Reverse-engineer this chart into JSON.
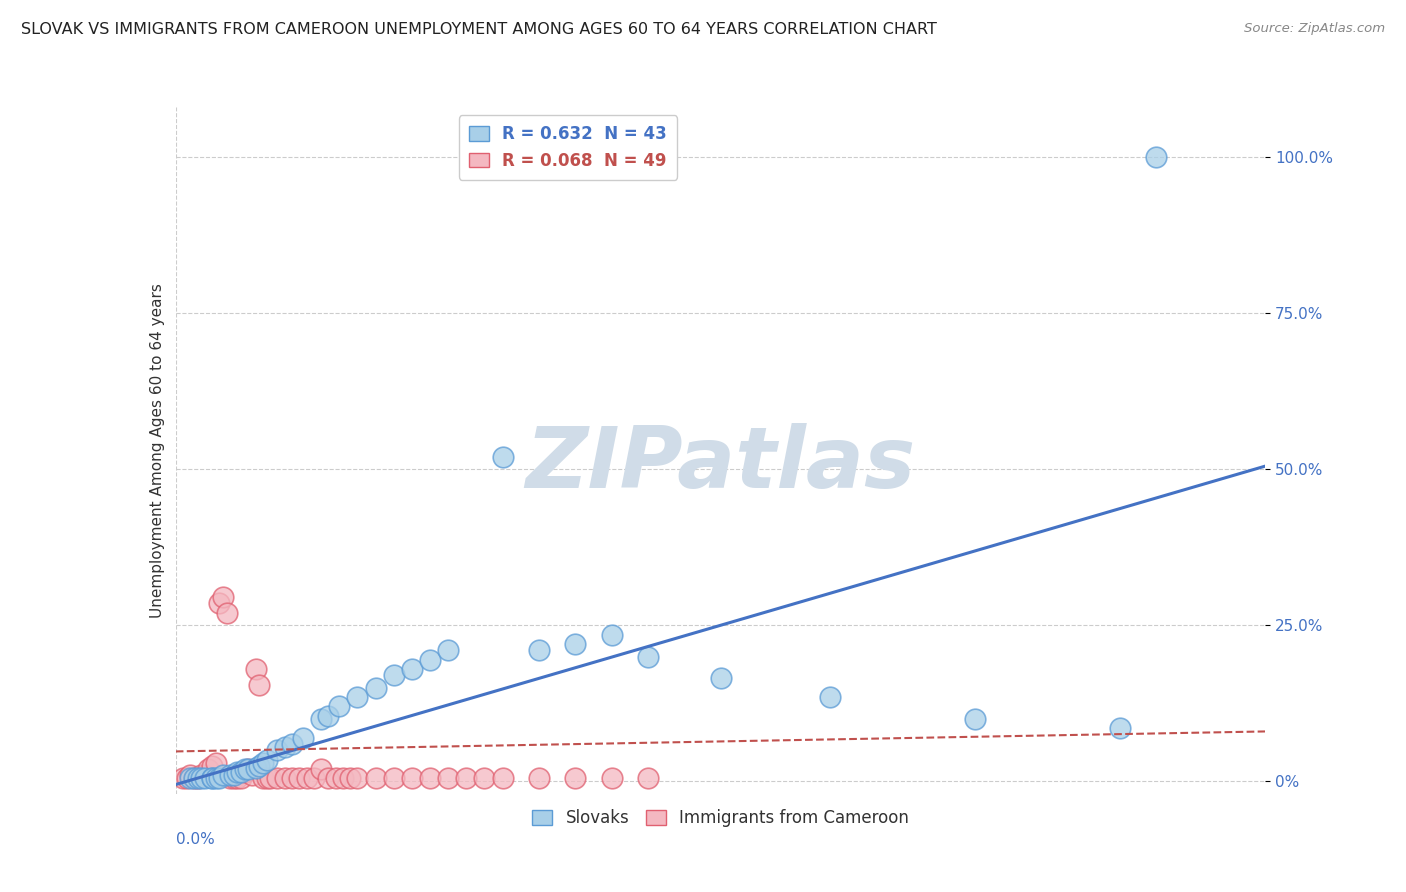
{
  "title": "SLOVAK VS IMMIGRANTS FROM CAMEROON UNEMPLOYMENT AMONG AGES 60 TO 64 YEARS CORRELATION CHART",
  "source": "Source: ZipAtlas.com",
  "xlabel_bottom_left": "0.0%",
  "ylabel": "Unemployment Among Ages 60 to 64 years",
  "yticks_labels": [
    "0%",
    "25.0%",
    "50.0%",
    "75.0%",
    "100.0%"
  ],
  "ytick_vals": [
    0,
    0.25,
    0.5,
    0.75,
    1.0
  ],
  "xlim": [
    0.0,
    0.3
  ],
  "ylim": [
    -0.02,
    1.08
  ],
  "legend_r1": "R = 0.632  N = 43",
  "legend_r2": "R = 0.068  N = 49",
  "legend_label1": "Slovaks",
  "legend_label2": "Immigrants from Cameroon",
  "blue_color": "#a8cfe8",
  "pink_color": "#f4b8c1",
  "blue_edge_color": "#5b9bd5",
  "pink_edge_color": "#e06070",
  "blue_line_color": "#4472c4",
  "pink_line_color": "#c0504d",
  "watermark_color": "#d0dce8",
  "blue_x": [
    0.004,
    0.005,
    0.006,
    0.007,
    0.008,
    0.01,
    0.01,
    0.011,
    0.012,
    0.013,
    0.015,
    0.016,
    0.017,
    0.018,
    0.019,
    0.02,
    0.022,
    0.023,
    0.024,
    0.025,
    0.028,
    0.03,
    0.032,
    0.035,
    0.04,
    0.042,
    0.045,
    0.05,
    0.055,
    0.06,
    0.065,
    0.07,
    0.075,
    0.09,
    0.1,
    0.11,
    0.12,
    0.13,
    0.15,
    0.18,
    0.22,
    0.26,
    0.27
  ],
  "blue_y": [
    0.005,
    0.005,
    0.005,
    0.005,
    0.005,
    0.005,
    0.005,
    0.005,
    0.005,
    0.01,
    0.01,
    0.01,
    0.015,
    0.015,
    0.02,
    0.02,
    0.022,
    0.025,
    0.03,
    0.035,
    0.05,
    0.055,
    0.06,
    0.07,
    0.1,
    0.105,
    0.12,
    0.135,
    0.15,
    0.17,
    0.18,
    0.195,
    0.21,
    0.52,
    0.21,
    0.22,
    0.235,
    0.2,
    0.165,
    0.135,
    0.1,
    0.085,
    1.0
  ],
  "pink_x": [
    0.002,
    0.003,
    0.004,
    0.005,
    0.006,
    0.007,
    0.008,
    0.009,
    0.01,
    0.011,
    0.012,
    0.013,
    0.014,
    0.015,
    0.016,
    0.017,
    0.018,
    0.019,
    0.02,
    0.021,
    0.022,
    0.023,
    0.024,
    0.025,
    0.026,
    0.028,
    0.03,
    0.032,
    0.034,
    0.036,
    0.038,
    0.04,
    0.042,
    0.044,
    0.046,
    0.048,
    0.05,
    0.055,
    0.06,
    0.065,
    0.07,
    0.075,
    0.08,
    0.085,
    0.09,
    0.1,
    0.11,
    0.12,
    0.13
  ],
  "pink_y": [
    0.005,
    0.005,
    0.01,
    0.005,
    0.005,
    0.01,
    0.01,
    0.02,
    0.025,
    0.03,
    0.285,
    0.295,
    0.27,
    0.005,
    0.005,
    0.005,
    0.005,
    0.015,
    0.02,
    0.01,
    0.18,
    0.155,
    0.005,
    0.005,
    0.005,
    0.005,
    0.005,
    0.005,
    0.005,
    0.005,
    0.005,
    0.02,
    0.005,
    0.005,
    0.005,
    0.005,
    0.005,
    0.005,
    0.005,
    0.005,
    0.005,
    0.005,
    0.005,
    0.005,
    0.005,
    0.005,
    0.005,
    0.005,
    0.005
  ]
}
